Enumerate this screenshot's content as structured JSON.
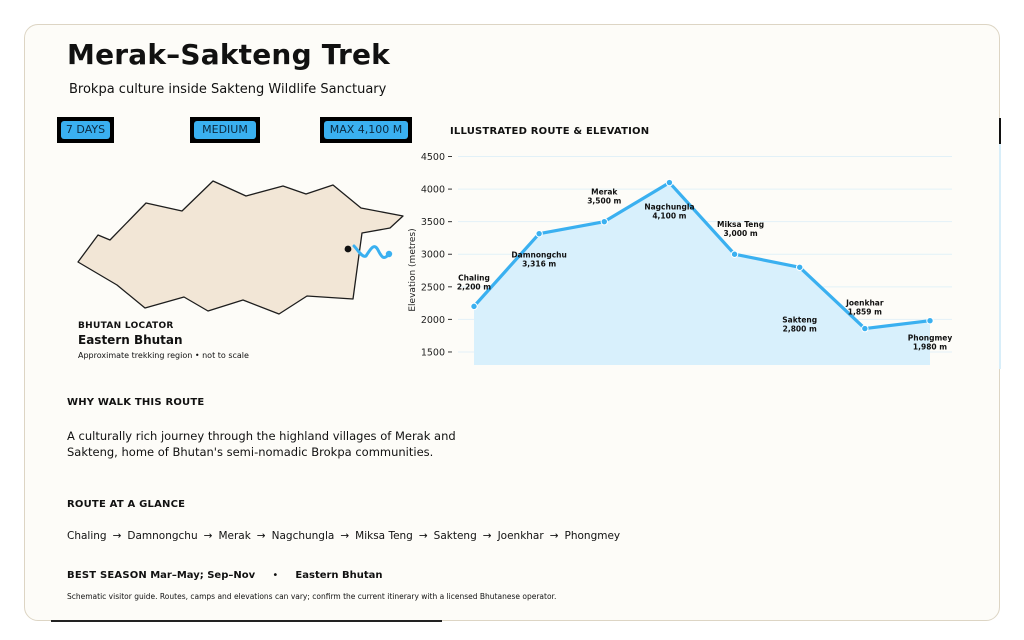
{
  "header": {
    "title": "Merak–Sakteng Trek",
    "subtitle": "Brokpa culture inside Sakteng Wildlife Sanctuary"
  },
  "badges": [
    {
      "label": "7 DAYS"
    },
    {
      "label": "MEDIUM"
    },
    {
      "label": "MAX 4,100 M"
    }
  ],
  "locator": {
    "label": "BHUTAN LOCATOR",
    "region": "Eastern Bhutan",
    "note": "Approximate trekking region • not to scale"
  },
  "chart_data": {
    "type": "area",
    "title": "ILLUSTRATED ROUTE & ELEVATION",
    "ylabel": "Elevation (metres)",
    "ylim": [
      1300,
      4600
    ],
    "yticks": [
      1500,
      2000,
      2500,
      3000,
      3500,
      4000,
      4500
    ],
    "grid": true,
    "points": [
      {
        "name": "Chaling",
        "elevation": 2200,
        "label": "2,200 m"
      },
      {
        "name": "Damnongchu",
        "elevation": 3316,
        "label": "3,316 m"
      },
      {
        "name": "Merak",
        "elevation": 3500,
        "label": "3,500 m"
      },
      {
        "name": "Nagchungla",
        "elevation": 4100,
        "label": "4,100 m"
      },
      {
        "name": "Miksa Teng",
        "elevation": 3000,
        "label": "3,000 m"
      },
      {
        "name": "Sakteng",
        "elevation": 2800,
        "label": "2,800 m"
      },
      {
        "name": "Joenkhar",
        "elevation": 1859,
        "label": "1,859 m"
      },
      {
        "name": "Phongmey",
        "elevation": 1980,
        "label": "1,980 m"
      }
    ],
    "colors": {
      "line": "#3ab0f0",
      "fill": "#d8f0fc",
      "grid": "#e2f1f8"
    }
  },
  "why": {
    "heading": "WHY WALK THIS ROUTE",
    "body": "A culturally rich journey through the highland villages of Merak and Sakteng, home of Bhutan's semi-nomadic Brokpa communities."
  },
  "glance": {
    "heading": "ROUTE AT A GLANCE",
    "stops": [
      "Chaling",
      "Damnongchu",
      "Merak",
      "Nagchungla",
      "Miksa Teng",
      "Sakteng",
      "Joenkhar",
      "Phongmey"
    ],
    "arrow": "→"
  },
  "season": {
    "label": "BEST SEASON",
    "value": "Mar–May; Sep–Nov",
    "separator": "•",
    "region": "Eastern Bhutan"
  },
  "disclaimer": "Schematic visitor guide. Routes, camps and elevations can vary; confirm the current itinerary with a licensed Bhutanese operator.",
  "icons": {
    "map": "bhutan-outline-icon",
    "route": "trek-route-squiggle-icon"
  }
}
